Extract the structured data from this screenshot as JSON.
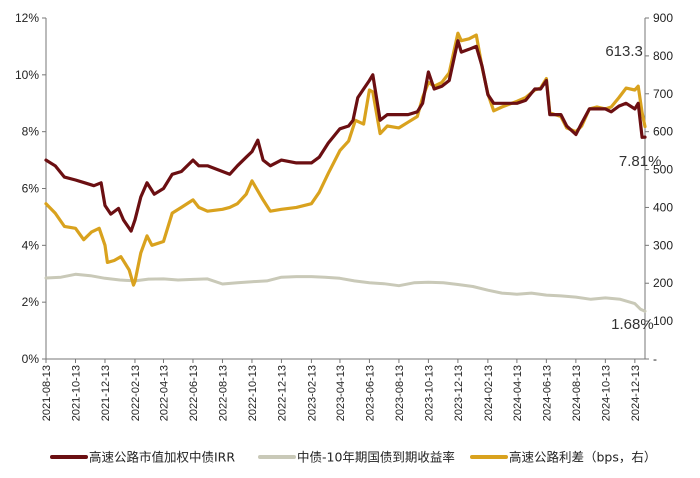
{
  "chart_data": {
    "type": "line",
    "x_ticks": [
      "2021-08-13",
      "2021-10-13",
      "2021-12-13",
      "2022-02-13",
      "2022-04-13",
      "2022-06-13",
      "2022-08-13",
      "2022-10-13",
      "2022-12-13",
      "2023-02-13",
      "2023-04-13",
      "2023-06-13",
      "2023-08-13",
      "2023-10-13",
      "2023-12-13",
      "2024-02-13",
      "2024-04-13",
      "2024-06-13",
      "2024-08-13",
      "2024-10-13",
      "2024-12-13"
    ],
    "y_left": {
      "min": 0,
      "max": 12,
      "ticks": [
        "0%",
        "2%",
        "4%",
        "6%",
        "8%",
        "10%",
        "12%"
      ]
    },
    "y_right": {
      "min": 0,
      "max": 900,
      "ticks": [
        "-",
        "100",
        "200",
        "300",
        "400",
        "500",
        "600",
        "700",
        "800",
        "900"
      ]
    },
    "legend_position": "bottom",
    "series": [
      {
        "name": "高速公路市值加权中债IRR",
        "axis": "left",
        "color": "#6b0f12",
        "points": [
          [
            "2021-08-13",
            7.0
          ],
          [
            "2021-09-01",
            6.8
          ],
          [
            "2021-09-20",
            6.4
          ],
          [
            "2021-10-13",
            6.3
          ],
          [
            "2021-11-01",
            6.2
          ],
          [
            "2021-11-20",
            6.1
          ],
          [
            "2021-12-05",
            6.2
          ],
          [
            "2021-12-13",
            5.4
          ],
          [
            "2021-12-25",
            5.1
          ],
          [
            "2022-01-10",
            5.3
          ],
          [
            "2022-01-20",
            4.9
          ],
          [
            "2022-02-05",
            4.5
          ],
          [
            "2022-02-13",
            4.9
          ],
          [
            "2022-02-25",
            5.7
          ],
          [
            "2022-03-10",
            6.2
          ],
          [
            "2022-03-25",
            5.8
          ],
          [
            "2022-04-13",
            6.0
          ],
          [
            "2022-05-01",
            6.5
          ],
          [
            "2022-05-20",
            6.6
          ],
          [
            "2022-06-13",
            7.0
          ],
          [
            "2022-06-25",
            6.8
          ],
          [
            "2022-07-13",
            6.8
          ],
          [
            "2022-08-13",
            6.6
          ],
          [
            "2022-08-28",
            6.5
          ],
          [
            "2022-09-13",
            6.8
          ],
          [
            "2022-10-01",
            7.1
          ],
          [
            "2022-10-13",
            7.3
          ],
          [
            "2022-10-25",
            7.7
          ],
          [
            "2022-11-05",
            7.0
          ],
          [
            "2022-11-20",
            6.8
          ],
          [
            "2022-12-13",
            7.0
          ],
          [
            "2023-01-13",
            6.9
          ],
          [
            "2023-02-13",
            6.9
          ],
          [
            "2023-03-01",
            7.1
          ],
          [
            "2023-03-20",
            7.6
          ],
          [
            "2023-04-13",
            8.1
          ],
          [
            "2023-05-01",
            8.2
          ],
          [
            "2023-05-10",
            8.4
          ],
          [
            "2023-05-20",
            9.2
          ],
          [
            "2023-06-01",
            9.5
          ],
          [
            "2023-06-13",
            9.8
          ],
          [
            "2023-06-20",
            10.0
          ],
          [
            "2023-07-05",
            8.4
          ],
          [
            "2023-07-20",
            8.6
          ],
          [
            "2023-08-13",
            8.6
          ],
          [
            "2023-09-01",
            8.6
          ],
          [
            "2023-09-20",
            8.7
          ],
          [
            "2023-10-01",
            9.0
          ],
          [
            "2023-10-13",
            10.1
          ],
          [
            "2023-10-25",
            9.5
          ],
          [
            "2023-11-10",
            9.6
          ],
          [
            "2023-11-25",
            9.8
          ],
          [
            "2023-12-13",
            11.2
          ],
          [
            "2023-12-20",
            10.8
          ],
          [
            "2024-01-05",
            10.9
          ],
          [
            "2024-01-20",
            11.0
          ],
          [
            "2024-02-01",
            10.3
          ],
          [
            "2024-02-13",
            9.3
          ],
          [
            "2024-02-25",
            9.0
          ],
          [
            "2024-03-13",
            9.0
          ],
          [
            "2024-04-13",
            9.0
          ],
          [
            "2024-05-01",
            9.1
          ],
          [
            "2024-05-20",
            9.5
          ],
          [
            "2024-06-01",
            9.5
          ],
          [
            "2024-06-13",
            9.8
          ],
          [
            "2024-06-20",
            8.6
          ],
          [
            "2024-07-01",
            8.6
          ],
          [
            "2024-07-13",
            8.6
          ],
          [
            "2024-07-25",
            8.2
          ],
          [
            "2024-08-13",
            7.9
          ],
          [
            "2024-08-25",
            8.3
          ],
          [
            "2024-09-10",
            8.8
          ],
          [
            "2024-09-25",
            8.8
          ],
          [
            "2024-10-13",
            8.8
          ],
          [
            "2024-10-25",
            8.7
          ],
          [
            "2024-11-10",
            8.9
          ],
          [
            "2024-11-25",
            9.0
          ],
          [
            "2024-12-13",
            8.8
          ],
          [
            "2024-12-20",
            9.0
          ],
          [
            "2024-12-28",
            7.8
          ],
          [
            "2025-01-03",
            7.81
          ]
        ]
      },
      {
        "name": "中债-10年期国债到期收益率",
        "axis": "left",
        "color": "#c9c9b8",
        "points": [
          [
            "2021-08-13",
            2.85
          ],
          [
            "2021-09-13",
            2.88
          ],
          [
            "2021-10-13",
            2.98
          ],
          [
            "2021-11-13",
            2.93
          ],
          [
            "2021-12-13",
            2.84
          ],
          [
            "2022-01-13",
            2.78
          ],
          [
            "2022-02-13",
            2.75
          ],
          [
            "2022-03-13",
            2.81
          ],
          [
            "2022-04-13",
            2.82
          ],
          [
            "2022-05-13",
            2.78
          ],
          [
            "2022-06-13",
            2.8
          ],
          [
            "2022-07-13",
            2.82
          ],
          [
            "2022-08-13",
            2.64
          ],
          [
            "2022-09-13",
            2.68
          ],
          [
            "2022-10-13",
            2.72
          ],
          [
            "2022-11-13",
            2.75
          ],
          [
            "2022-12-13",
            2.88
          ],
          [
            "2023-01-13",
            2.9
          ],
          [
            "2023-02-13",
            2.9
          ],
          [
            "2023-03-13",
            2.88
          ],
          [
            "2023-04-13",
            2.84
          ],
          [
            "2023-05-13",
            2.75
          ],
          [
            "2023-06-13",
            2.68
          ],
          [
            "2023-07-13",
            2.65
          ],
          [
            "2023-08-13",
            2.58
          ],
          [
            "2023-09-13",
            2.68
          ],
          [
            "2023-10-13",
            2.7
          ],
          [
            "2023-11-13",
            2.68
          ],
          [
            "2023-12-13",
            2.62
          ],
          [
            "2024-01-13",
            2.55
          ],
          [
            "2024-02-13",
            2.42
          ],
          [
            "2024-03-13",
            2.32
          ],
          [
            "2024-04-13",
            2.28
          ],
          [
            "2024-05-13",
            2.32
          ],
          [
            "2024-06-13",
            2.25
          ],
          [
            "2024-07-13",
            2.22
          ],
          [
            "2024-08-13",
            2.18
          ],
          [
            "2024-09-13",
            2.1
          ],
          [
            "2024-10-13",
            2.15
          ],
          [
            "2024-11-13",
            2.1
          ],
          [
            "2024-12-13",
            1.95
          ],
          [
            "2024-12-25",
            1.75
          ],
          [
            "2025-01-03",
            1.68
          ]
        ]
      },
      {
        "name": "高速公路利差（bps，右）",
        "axis": "right",
        "color": "#d9a21e",
        "points": [
          [
            "2021-08-13",
            410
          ],
          [
            "2021-09-01",
            385
          ],
          [
            "2021-09-20",
            350
          ],
          [
            "2021-10-13",
            345
          ],
          [
            "2021-10-30",
            315
          ],
          [
            "2021-11-15",
            335
          ],
          [
            "2021-12-01",
            345
          ],
          [
            "2021-12-13",
            300
          ],
          [
            "2021-12-18",
            255
          ],
          [
            "2022-01-01",
            260
          ],
          [
            "2022-01-15",
            270
          ],
          [
            "2022-02-01",
            235
          ],
          [
            "2022-02-10",
            195
          ],
          [
            "2022-02-13",
            205
          ],
          [
            "2022-02-25",
            280
          ],
          [
            "2022-03-10",
            325
          ],
          [
            "2022-03-20",
            300
          ],
          [
            "2022-04-13",
            310
          ],
          [
            "2022-05-01",
            385
          ],
          [
            "2022-05-20",
            400
          ],
          [
            "2022-06-13",
            420
          ],
          [
            "2022-06-25",
            400
          ],
          [
            "2022-07-13",
            390
          ],
          [
            "2022-08-13",
            395
          ],
          [
            "2022-08-28",
            400
          ],
          [
            "2022-09-13",
            410
          ],
          [
            "2022-10-01",
            435
          ],
          [
            "2022-10-13",
            470
          ],
          [
            "2022-10-20",
            455
          ],
          [
            "2022-11-05",
            420
          ],
          [
            "2022-11-20",
            390
          ],
          [
            "2022-12-13",
            395
          ],
          [
            "2023-01-13",
            400
          ],
          [
            "2023-02-13",
            410
          ],
          [
            "2023-03-01",
            440
          ],
          [
            "2023-03-20",
            490
          ],
          [
            "2023-04-13",
            550
          ],
          [
            "2023-05-01",
            575
          ],
          [
            "2023-05-15",
            630
          ],
          [
            "2023-06-01",
            620
          ],
          [
            "2023-06-13",
            710
          ],
          [
            "2023-06-20",
            705
          ],
          [
            "2023-07-05",
            595
          ],
          [
            "2023-07-20",
            615
          ],
          [
            "2023-08-13",
            610
          ],
          [
            "2023-09-01",
            625
          ],
          [
            "2023-09-20",
            640
          ],
          [
            "2023-10-01",
            690
          ],
          [
            "2023-10-13",
            730
          ],
          [
            "2023-10-25",
            720
          ],
          [
            "2023-11-10",
            730
          ],
          [
            "2023-11-25",
            755
          ],
          [
            "2023-12-13",
            860
          ],
          [
            "2023-12-20",
            840
          ],
          [
            "2024-01-05",
            845
          ],
          [
            "2024-01-20",
            855
          ],
          [
            "2024-02-01",
            770
          ],
          [
            "2024-02-13",
            700
          ],
          [
            "2024-02-25",
            655
          ],
          [
            "2024-03-13",
            665
          ],
          [
            "2024-04-13",
            680
          ],
          [
            "2024-05-01",
            690
          ],
          [
            "2024-05-20",
            710
          ],
          [
            "2024-06-01",
            715
          ],
          [
            "2024-06-13",
            740
          ],
          [
            "2024-06-20",
            650
          ],
          [
            "2024-07-01",
            645
          ],
          [
            "2024-07-13",
            640
          ],
          [
            "2024-07-25",
            610
          ],
          [
            "2024-08-13",
            600
          ],
          [
            "2024-08-25",
            615
          ],
          [
            "2024-09-10",
            660
          ],
          [
            "2024-09-25",
            665
          ],
          [
            "2024-10-13",
            660
          ],
          [
            "2024-10-25",
            665
          ],
          [
            "2024-11-10",
            690
          ],
          [
            "2024-11-25",
            715
          ],
          [
            "2024-12-13",
            710
          ],
          [
            "2024-12-20",
            720
          ],
          [
            "2024-12-28",
            650
          ],
          [
            "2025-01-03",
            613.3
          ]
        ]
      }
    ],
    "annotations": [
      {
        "text": "613.3",
        "x": "2024-10-13",
        "y": 800,
        "axis": "right"
      },
      {
        "text": "7.81%",
        "x": "2024-11-10",
        "y": 6.8,
        "axis": "left"
      },
      {
        "text": "1.68%",
        "x": "2024-10-25",
        "y": 1.05,
        "axis": "left"
      }
    ]
  }
}
